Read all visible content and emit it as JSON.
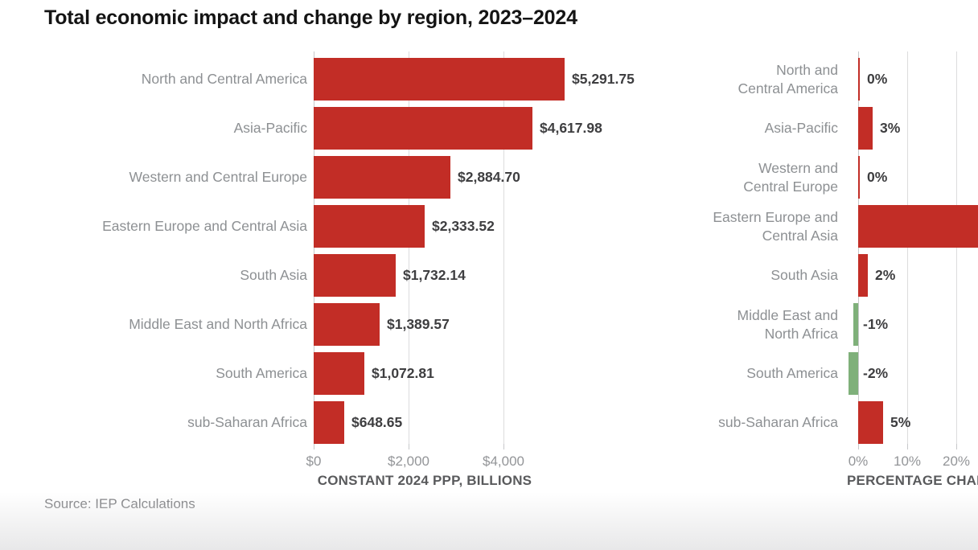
{
  "page": {
    "title": "Total economic impact and change by region, 2023–2024",
    "source": "Source: IEP Calculations"
  },
  "colors": {
    "bar_red": "#c22d26",
    "bar_green": "#7fb07a",
    "category_label_gray": "#8d9093",
    "value_label_dark": "#3e3e40",
    "tick_label_gray": "#939598",
    "axis_title_gray": "#595a5c",
    "gridline": "#dcdcdd",
    "axis_line": "#c7c8ca",
    "title_black": "#141414",
    "source_gray": "#77787b"
  },
  "chart_data": [
    {
      "type": "bar",
      "orientation": "horizontal",
      "xlabel": "CONSTANT 2024 PPP, BILLIONS",
      "categories": [
        "North and Central America",
        "Asia-Pacific",
        "Western and Central Europe",
        "Eastern Europe and Central Asia",
        "South Asia",
        "Middle East and North Africa",
        "South America",
        "sub-Saharan Africa"
      ],
      "values": [
        5291.75,
        4617.98,
        2884.7,
        2333.52,
        1732.14,
        1389.57,
        1072.81,
        648.65
      ],
      "value_labels": [
        "$5,291.75",
        "$4,617.98",
        "$2,884.70",
        "$2,333.52",
        "$1,732.14",
        "$1,389.57",
        "$1,072.81",
        "$648.65"
      ],
      "xticks": [
        {
          "value": 0,
          "label": "$0"
        },
        {
          "value": 2000,
          "label": "$2,000"
        },
        {
          "value": 4000,
          "label": "$4,000"
        }
      ],
      "xlim": [
        0,
        6440
      ],
      "grid": true,
      "bar_color": "#c22d26"
    },
    {
      "type": "bar",
      "orientation": "horizontal",
      "xlabel": "PERCENTAGE CHANGE",
      "categories": [
        "North and Central America",
        "Asia-Pacific",
        "Western and Central Europe",
        "Eastern Europe and Central Asia",
        "South Asia",
        "Middle East and North Africa",
        "South America",
        "sub-Saharan Africa"
      ],
      "categories_wrapped": [
        [
          "North and",
          "Central America"
        ],
        [
          "Asia-Pacific"
        ],
        [
          "Western and",
          "Central Europe"
        ],
        [
          "Eastern Europe and",
          "Central Asia"
        ],
        [
          "South Asia"
        ],
        [
          "Middle East and",
          "North Africa"
        ],
        [
          "South America"
        ],
        [
          "sub-Saharan Africa"
        ]
      ],
      "values": [
        0,
        3,
        0,
        null,
        2,
        -1,
        -2,
        5
      ],
      "value_labels": [
        "0%",
        "3%",
        "0%",
        "",
        "2%",
        "-1%",
        "-2%",
        "5%"
      ],
      "clipped": [
        false,
        false,
        false,
        true,
        false,
        false,
        false,
        false
      ],
      "xticks": [
        {
          "value": 0,
          "label": "0%"
        },
        {
          "value": 10,
          "label": "10%"
        },
        {
          "value": 20,
          "label": "20%"
        }
      ],
      "xlim": [
        -4,
        24.4
      ],
      "grid": true,
      "positive_color": "#c22d26",
      "negative_color": "#7fb07a"
    }
  ]
}
